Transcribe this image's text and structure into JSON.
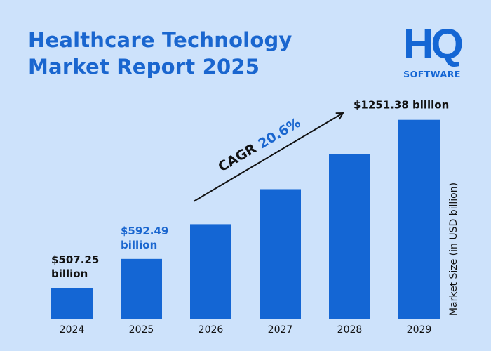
{
  "title_line1": "Healthcare Technology",
  "title_line2": "Market Report 2025",
  "logo": {
    "mark": "HQ",
    "text": "SOFTWARE"
  },
  "colors": {
    "background": "#cde2fb",
    "bar": "#1466d4",
    "accent": "#1a66cf",
    "text": "#111111"
  },
  "chart_data": {
    "type": "bar",
    "categories": [
      "2024",
      "2025",
      "2026",
      "2027",
      "2028",
      "2029"
    ],
    "values": [
      507.25,
      592.49,
      714,
      862,
      1040,
      1251.38
    ],
    "ylabel": "Market Size (in USD billion)",
    "data_labels": [
      {
        "category": "2024",
        "line1": "$507.25",
        "line2": "billion",
        "color": "#111111"
      },
      {
        "category": "2025",
        "line1": "$592.49",
        "line2": "billion",
        "color": "#1a66cf"
      },
      {
        "category": "2029",
        "line1": "$1251.38 billion",
        "line2": "",
        "color": "#111111"
      }
    ],
    "annotation": {
      "label": "CAGR",
      "value": "20.6%"
    },
    "grid": false,
    "legend": "none"
  }
}
